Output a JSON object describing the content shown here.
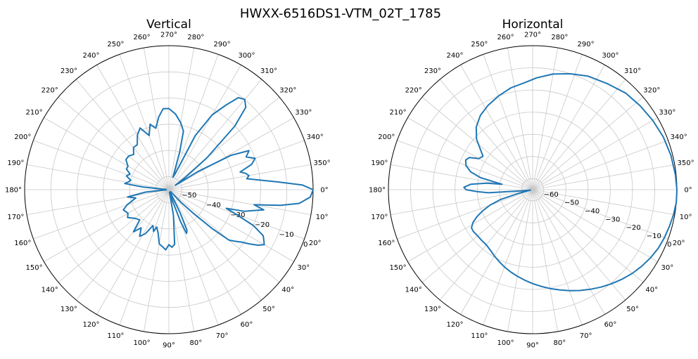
{
  "figure": {
    "suptitle": "HWXX-6516DS1-VTM_02T_1785"
  },
  "chart_data": [
    {
      "type": "polar-line",
      "title": "Vertical",
      "theta_direction": "clockwise",
      "theta_zero": "east",
      "theta_ticks_deg": [
        0,
        10,
        20,
        30,
        40,
        50,
        60,
        70,
        80,
        90,
        100,
        110,
        120,
        130,
        140,
        150,
        160,
        170,
        180,
        190,
        200,
        210,
        220,
        230,
        240,
        250,
        260,
        270,
        280,
        290,
        300,
        310,
        320,
        330,
        340,
        350
      ],
      "theta_tick_labels": [
        "0°",
        "10°",
        "20°",
        "30°",
        "40°",
        "50°",
        "60°",
        "70°",
        "80°",
        "90°",
        "100°",
        "110°",
        "120°",
        "130°",
        "140°",
        "150°",
        "160°",
        "170°",
        "180°",
        "190°",
        "200°",
        "210°",
        "220°",
        "230°",
        "240°",
        "250°",
        "260°",
        "270°",
        "280°",
        "290°",
        "300°",
        "310°",
        "320°",
        "330°",
        "340°",
        "350°"
      ],
      "rlim": [
        -55,
        0
      ],
      "r_ticks": [
        -50,
        -40,
        -30,
        -20,
        -10,
        0
      ],
      "r_tick_labels": [
        "−50",
        "−40",
        "−30",
        "−20",
        "−10",
        "0"
      ],
      "r_label_angle_deg": 22,
      "grid": true,
      "color": "#1f77b4",
      "points": [
        [
          0,
          0
        ],
        [
          3,
          -1
        ],
        [
          6,
          -5
        ],
        [
          8,
          -12
        ],
        [
          10,
          -22
        ],
        [
          12,
          -18
        ],
        [
          14,
          -22
        ],
        [
          16,
          -25
        ],
        [
          18,
          -32
        ],
        [
          20,
          -28
        ],
        [
          23,
          -20
        ],
        [
          26,
          -15
        ],
        [
          28,
          -14
        ],
        [
          30,
          -13
        ],
        [
          32,
          -15
        ],
        [
          34,
          -18
        ],
        [
          36,
          -21
        ],
        [
          38,
          -23
        ],
        [
          40,
          -25
        ],
        [
          42,
          -33
        ],
        [
          44,
          -42
        ],
        [
          46,
          -48
        ],
        [
          48,
          -54
        ],
        [
          62,
          -54
        ],
        [
          64,
          -45
        ],
        [
          66,
          -38
        ],
        [
          68,
          -37
        ],
        [
          70,
          -42
        ],
        [
          72,
          -50
        ],
        [
          76,
          -54
        ],
        [
          80,
          -45
        ],
        [
          84,
          -34
        ],
        [
          87,
          -33
        ],
        [
          90,
          -34
        ],
        [
          93,
          -32
        ],
        [
          96,
          -33
        ],
        [
          100,
          -34
        ],
        [
          104,
          -38
        ],
        [
          108,
          -40
        ],
        [
          110,
          -38
        ],
        [
          114,
          -40
        ],
        [
          118,
          -36
        ],
        [
          122,
          -34
        ],
        [
          126,
          -37
        ],
        [
          130,
          -34
        ],
        [
          134,
          -39
        ],
        [
          140,
          -38
        ],
        [
          146,
          -36
        ],
        [
          150,
          -37
        ],
        [
          156,
          -36
        ],
        [
          160,
          -38
        ],
        [
          166,
          -42
        ],
        [
          170,
          -39
        ],
        [
          174,
          -46
        ],
        [
          178,
          -54
        ],
        [
          184,
          -54
        ],
        [
          186,
          -45
        ],
        [
          188,
          -38
        ],
        [
          190,
          -39
        ],
        [
          194,
          -40
        ],
        [
          198,
          -38
        ],
        [
          202,
          -39
        ],
        [
          206,
          -37
        ],
        [
          210,
          -37
        ],
        [
          215,
          -35
        ],
        [
          220,
          -35
        ],
        [
          225,
          -36
        ],
        [
          230,
          -34
        ],
        [
          235,
          -34
        ],
        [
          240,
          -31
        ],
        [
          245,
          -29
        ],
        [
          250,
          -33
        ],
        [
          254,
          -29
        ],
        [
          258,
          -31
        ],
        [
          262,
          -27
        ],
        [
          266,
          -24
        ],
        [
          270,
          -24
        ],
        [
          275,
          -26
        ],
        [
          280,
          -29
        ],
        [
          284,
          -32
        ],
        [
          286,
          -40
        ],
        [
          288,
          -50
        ],
        [
          292,
          -48
        ],
        [
          296,
          -32
        ],
        [
          300,
          -22
        ],
        [
          304,
          -16
        ],
        [
          307,
          -11
        ],
        [
          310,
          -10
        ],
        [
          313,
          -12
        ],
        [
          316,
          -20
        ],
        [
          320,
          -36
        ],
        [
          323,
          -47
        ],
        [
          326,
          -52
        ],
        [
          328,
          -42
        ],
        [
          331,
          -28
        ],
        [
          334,
          -21
        ],
        [
          337,
          -23
        ],
        [
          340,
          -20
        ],
        [
          343,
          -22
        ],
        [
          346,
          -27
        ],
        [
          348,
          -25
        ],
        [
          350,
          -24
        ],
        [
          352,
          -25
        ],
        [
          354,
          -20
        ],
        [
          356,
          -13
        ],
        [
          358,
          -4
        ],
        [
          360,
          0
        ]
      ]
    },
    {
      "type": "polar-line",
      "title": "Horizontal",
      "theta_direction": "clockwise",
      "theta_zero": "east",
      "theta_ticks_deg": [
        0,
        10,
        20,
        30,
        40,
        50,
        60,
        70,
        80,
        90,
        100,
        110,
        120,
        130,
        140,
        150,
        160,
        170,
        180,
        190,
        200,
        210,
        220,
        230,
        240,
        250,
        260,
        270,
        280,
        290,
        300,
        310,
        320,
        330,
        340,
        350
      ],
      "theta_tick_labels": [
        "0°",
        "10°",
        "20°",
        "30°",
        "40°",
        "50°",
        "60°",
        "70°",
        "80°",
        "90°",
        "100°",
        "110°",
        "120°",
        "130°",
        "140°",
        "150°",
        "160°",
        "170°",
        "180°",
        "190°",
        "200°",
        "210°",
        "220°",
        "230°",
        "240°",
        "250°",
        "260°",
        "270°",
        "280°",
        "290°",
        "300°",
        "310°",
        "320°",
        "330°",
        "340°",
        "350°"
      ],
      "rlim": [
        -65,
        0
      ],
      "r_ticks": [
        -60,
        -50,
        -40,
        -30,
        -20,
        -10,
        0
      ],
      "r_tick_labels": [
        "−60",
        "−50",
        "−40",
        "−30",
        "−20",
        "−10",
        "0"
      ],
      "r_label_angle_deg": 22,
      "grid": true,
      "color": "#1f77b4",
      "points": [
        [
          0,
          0
        ],
        [
          5,
          0
        ],
        [
          10,
          -0.5
        ],
        [
          15,
          -1.2
        ],
        [
          20,
          -1.8
        ],
        [
          25,
          -2.5
        ],
        [
          30,
          -3.6
        ],
        [
          35,
          -4.9
        ],
        [
          40,
          -6.3
        ],
        [
          45,
          -7.9
        ],
        [
          50,
          -9.6
        ],
        [
          55,
          -11.3
        ],
        [
          60,
          -13.1
        ],
        [
          65,
          -14.8
        ],
        [
          70,
          -16.5
        ],
        [
          75,
          -18.2
        ],
        [
          80,
          -19.7
        ],
        [
          85,
          -21.2
        ],
        [
          90,
          -22.6
        ],
        [
          95,
          -24
        ],
        [
          100,
          -25.3
        ],
        [
          105,
          -26.6
        ],
        [
          110,
          -27.9
        ],
        [
          115,
          -29.2
        ],
        [
          120,
          -30.5
        ],
        [
          125,
          -31.7
        ],
        [
          130,
          -32.5
        ],
        [
          135,
          -32.6
        ],
        [
          140,
          -32.6
        ],
        [
          145,
          -32.3
        ],
        [
          148,
          -32.5
        ],
        [
          151,
          -34.2
        ],
        [
          154,
          -37
        ],
        [
          157,
          -40.5
        ],
        [
          160,
          -44.5
        ],
        [
          163,
          -50
        ],
        [
          165,
          -58
        ],
        [
          170,
          -64
        ],
        [
          174,
          -60
        ],
        [
          176,
          -45
        ],
        [
          178,
          -40
        ],
        [
          180,
          -35
        ],
        [
          182,
          -34
        ],
        [
          185,
          -37
        ],
        [
          188,
          -44
        ],
        [
          190,
          -51
        ],
        [
          193,
          -41
        ],
        [
          196,
          -36
        ],
        [
          200,
          -33
        ],
        [
          204,
          -32
        ],
        [
          207,
          -33
        ],
        [
          210,
          -37
        ],
        [
          214,
          -38
        ],
        [
          218,
          -35
        ],
        [
          222,
          -31
        ],
        [
          228,
          -27
        ],
        [
          235,
          -24
        ],
        [
          242,
          -22
        ],
        [
          250,
          -20
        ],
        [
          258,
          -18
        ],
        [
          266,
          -16.5
        ],
        [
          272,
          -14.5
        ],
        [
          280,
          -12
        ],
        [
          288,
          -10
        ],
        [
          296,
          -8
        ],
        [
          305,
          -6.5
        ],
        [
          314,
          -4.5
        ],
        [
          322,
          -3.5
        ],
        [
          330,
          -2.5
        ],
        [
          338,
          -1.5
        ],
        [
          346,
          -0.8
        ],
        [
          354,
          -0.3
        ],
        [
          360,
          0
        ]
      ]
    }
  ]
}
